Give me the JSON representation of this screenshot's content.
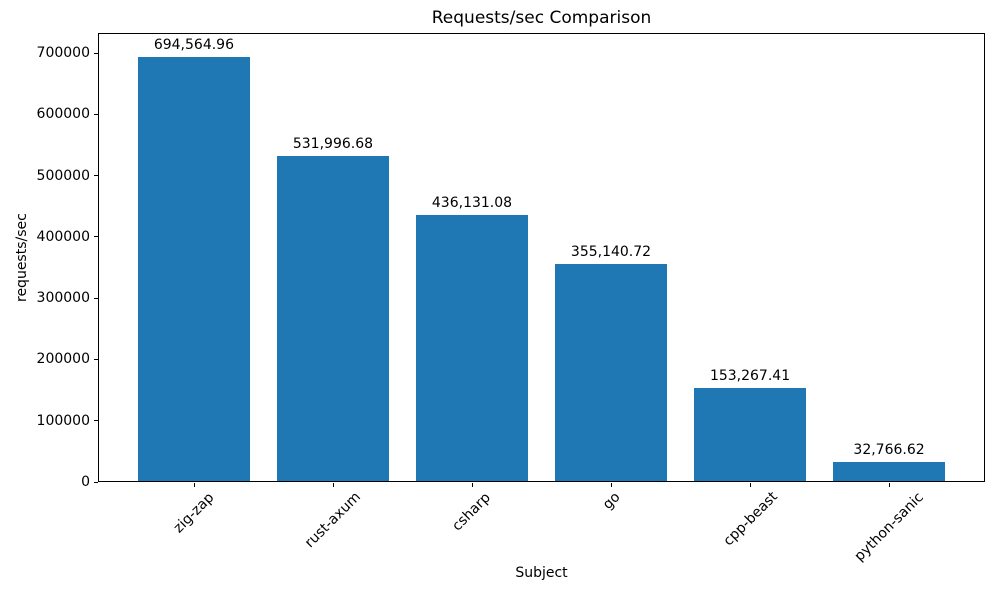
{
  "chart_data": {
    "type": "bar",
    "title": "Requests/sec Comparison",
    "xlabel": "Subject",
    "ylabel": "requests/sec",
    "categories": [
      "zig-zap",
      "rust-axum",
      "csharp",
      "go",
      "cpp-beast",
      "python-sanic"
    ],
    "values": [
      694564.96,
      531996.68,
      436131.08,
      355140.72,
      153267.41,
      32766.62
    ],
    "value_labels": [
      "694,564.96",
      "531,996.68",
      "436,131.08",
      "355,140.72",
      "153,267.41",
      "32,766.62"
    ],
    "bar_color": "#1f77b4",
    "y_ticks": [
      0,
      100000,
      200000,
      300000,
      400000,
      500000,
      600000,
      700000
    ],
    "y_tick_labels": [
      "0",
      "100000",
      "200000",
      "300000",
      "400000",
      "500000",
      "600000",
      "700000"
    ],
    "ylim": [
      0,
      733000
    ],
    "bar_width_fraction": 0.8,
    "xlim_padding": 0.05,
    "x_tick_rotation_deg": 45,
    "grid": false,
    "legend": "none",
    "spine_color": "#000000",
    "text_color": "#000000",
    "background_color": "#ffffff"
  }
}
